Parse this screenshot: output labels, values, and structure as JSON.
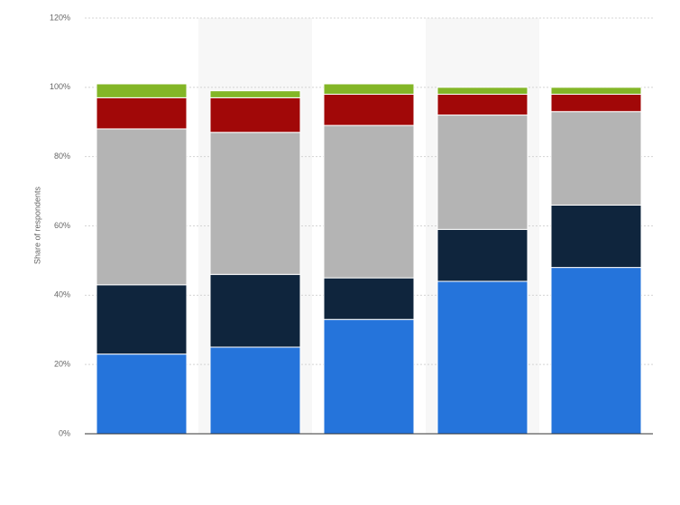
{
  "chart_data": {
    "type": "stacked_bar",
    "y_label": "Share of respondents",
    "categories": [
      null,
      null,
      null,
      null,
      null
    ],
    "series": [
      {
        "color": "#2574db",
        "values": [
          23,
          25,
          33,
          44,
          48
        ]
      },
      {
        "color": "#0f253d",
        "values": [
          20,
          21,
          12,
          15,
          18
        ]
      },
      {
        "color": "#b4b4b4",
        "values": [
          45,
          41,
          44,
          33,
          27
        ]
      },
      {
        "color": "#a10808",
        "values": [
          9,
          10,
          9,
          6,
          5
        ]
      },
      {
        "color": "#83b627",
        "values": [
          4,
          2,
          3,
          2,
          2
        ]
      }
    ],
    "ylim": [
      0,
      120
    ],
    "yticks": [
      {
        "value": 0,
        "label": "0%"
      },
      {
        "value": 20,
        "label": "20%"
      },
      {
        "value": 40,
        "label": "40%"
      },
      {
        "value": 60,
        "label": "60%"
      },
      {
        "value": 80,
        "label": "80%"
      },
      {
        "value": 100,
        "label": "100%"
      },
      {
        "value": 120,
        "label": "120%"
      }
    ],
    "grid": true
  }
}
